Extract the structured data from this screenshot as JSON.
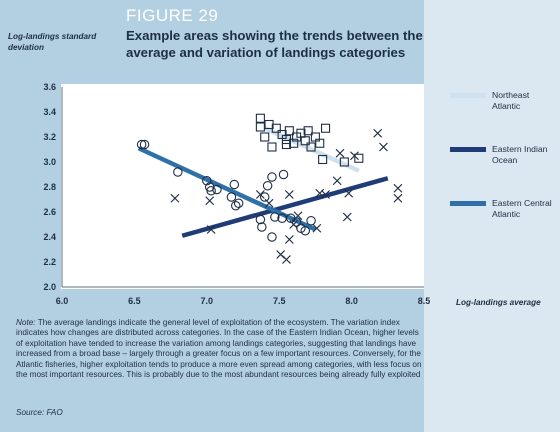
{
  "figure": {
    "label": "FIGURE 29",
    "title": "Example areas showing the trends between the average and variation of landings categories"
  },
  "colors": {
    "northeast_atlantic": "#cfe0ee",
    "eastern_indian_ocean": "#1f3b78",
    "eastern_central_atlantic": "#2f70a8",
    "marker": "#1e2e45"
  },
  "chart_data": {
    "type": "scatter",
    "xlabel": "Log-landings average",
    "ylabel": "Log-landings standard deviation",
    "xlim": [
      6.0,
      8.5
    ],
    "ylim": [
      2.0,
      3.6
    ],
    "xticks": [
      "6.0",
      "6.5",
      "7.0",
      "7.5",
      "8.0",
      "8.5"
    ],
    "yticks": [
      "2.0",
      "2.2",
      "2.4",
      "2.6",
      "2.8",
      "3.0",
      "3.2",
      "3.4",
      "3.6"
    ],
    "grid": false,
    "legend_position": "right",
    "series": [
      {
        "name": "Northeast Atlantic",
        "marker": "square",
        "points": [
          [
            7.37,
            3.35
          ],
          [
            7.37,
            3.28
          ],
          [
            7.43,
            3.3
          ],
          [
            7.4,
            3.2
          ],
          [
            7.48,
            3.27
          ],
          [
            7.45,
            3.12
          ],
          [
            7.52,
            3.22
          ],
          [
            7.55,
            3.18
          ],
          [
            7.57,
            3.25
          ],
          [
            7.6,
            3.15
          ],
          [
            7.62,
            3.2
          ],
          [
            7.65,
            3.23
          ],
          [
            7.68,
            3.17
          ],
          [
            7.7,
            3.25
          ],
          [
            7.72,
            3.12
          ],
          [
            7.75,
            3.2
          ],
          [
            7.78,
            3.15
          ],
          [
            7.82,
            3.27
          ],
          [
            7.8,
            3.02
          ],
          [
            7.95,
            3.0
          ],
          [
            8.05,
            3.03
          ],
          [
            7.55,
            3.14
          ]
        ],
        "trend": [
          [
            7.4,
            3.27
          ],
          [
            8.05,
            2.93
          ]
        ]
      },
      {
        "name": "Eastern Indian Ocean",
        "marker": "x",
        "points": [
          [
            6.78,
            2.71
          ],
          [
            7.03,
            2.46
          ],
          [
            7.02,
            2.69
          ],
          [
            7.37,
            2.74
          ],
          [
            7.43,
            2.67
          ],
          [
            7.51,
            2.26
          ],
          [
            7.55,
            2.22
          ],
          [
            7.57,
            2.38
          ],
          [
            7.57,
            2.74
          ],
          [
            7.6,
            2.5
          ],
          [
            7.63,
            2.57
          ],
          [
            7.76,
            2.47
          ],
          [
            7.78,
            2.75
          ],
          [
            7.82,
            2.74
          ],
          [
            7.9,
            2.85
          ],
          [
            7.92,
            3.07
          ],
          [
            7.97,
            2.56
          ],
          [
            7.98,
            2.75
          ],
          [
            8.02,
            3.05
          ],
          [
            8.18,
            3.23
          ],
          [
            8.22,
            3.12
          ],
          [
            8.32,
            2.79
          ],
          [
            8.32,
            2.71
          ]
        ],
        "trend": [
          [
            6.83,
            2.41
          ],
          [
            8.25,
            2.87
          ]
        ]
      },
      {
        "name": "Eastern Central Atlantic",
        "marker": "circle",
        "points": [
          [
            6.55,
            3.14
          ],
          [
            6.57,
            3.14
          ],
          [
            6.8,
            2.92
          ],
          [
            7.0,
            2.85
          ],
          [
            7.02,
            2.8
          ],
          [
            7.03,
            2.77
          ],
          [
            7.07,
            2.78
          ],
          [
            7.17,
            2.72
          ],
          [
            7.19,
            2.82
          ],
          [
            7.22,
            2.67
          ],
          [
            7.2,
            2.65
          ],
          [
            7.37,
            2.54
          ],
          [
            7.4,
            2.72
          ],
          [
            7.38,
            2.48
          ],
          [
            7.42,
            2.81
          ],
          [
            7.45,
            2.4
          ],
          [
            7.45,
            2.88
          ],
          [
            7.47,
            2.56
          ],
          [
            7.52,
            2.55
          ],
          [
            7.53,
            2.9
          ],
          [
            7.58,
            2.55
          ],
          [
            7.62,
            2.52
          ],
          [
            7.65,
            2.47
          ],
          [
            7.68,
            2.45
          ],
          [
            7.72,
            2.53
          ]
        ],
        "trend": [
          [
            6.53,
            3.11
          ],
          [
            7.75,
            2.46
          ]
        ]
      }
    ]
  },
  "note": {
    "head": "Note:",
    "text": "The average landings indicate the general level of exploitation of the ecosystem. The variation index indicates how changes are distributed across categories. In the case of the Eastern Indian Ocean, higher levels of exploitation have tended to increase the variation among landings categories, suggesting that landings have increased from a broad base – largely through a greater focus on a few important resources. Conversely, for the Atlantic fisheries, higher exploitation tends to produce a more even spread among categories, with less focus on the most important resources. This is probably due to the most abundant resources being already fully exploited"
  },
  "source": "Source: FAO"
}
